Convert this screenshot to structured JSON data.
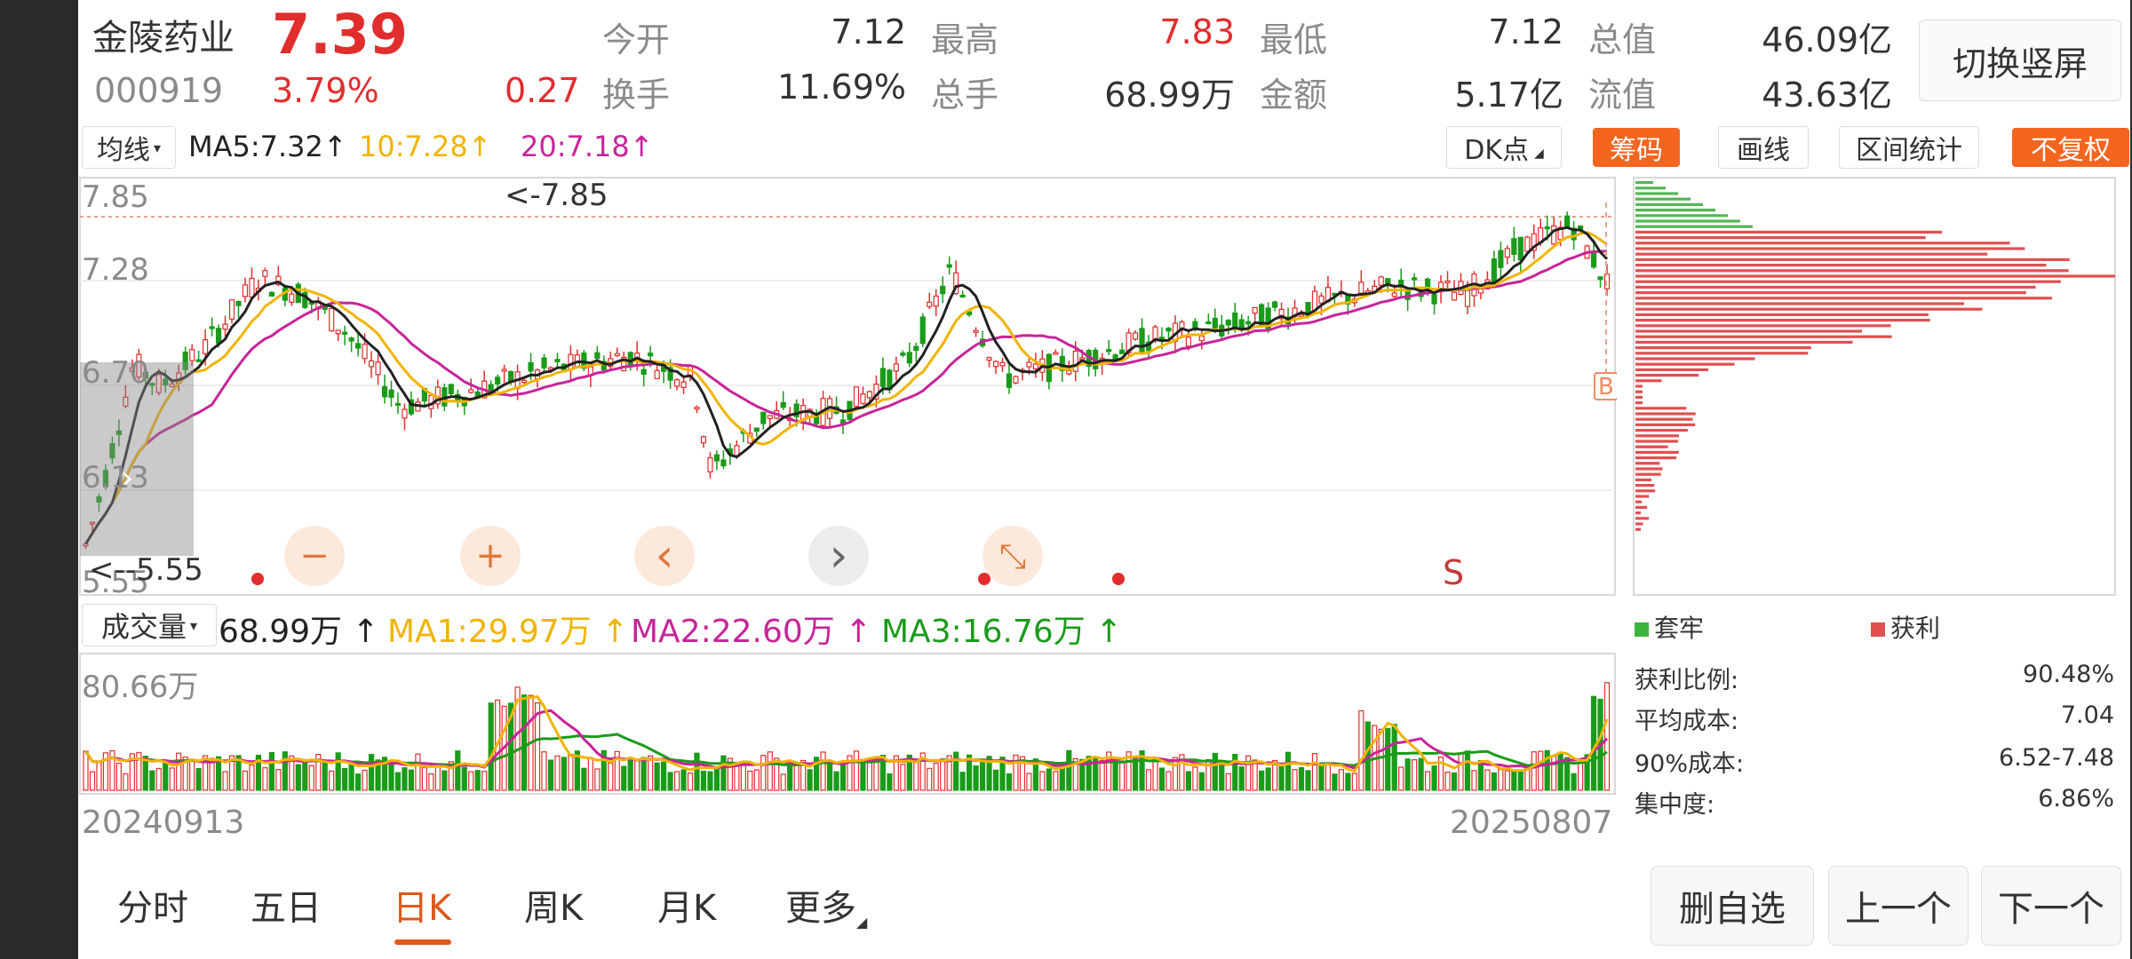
{
  "header": {
    "stock_name": "金陵药业",
    "price": "7.39",
    "code": "000919",
    "change_pct": "3.79%",
    "change": "0.27",
    "stats": [
      {
        "label": "今开",
        "value": "7.12",
        "color": "#333333"
      },
      {
        "label": "最高",
        "value": "7.83",
        "color": "#e22d2d"
      },
      {
        "label": "最低",
        "value": "7.12",
        "color": "#333333"
      },
      {
        "label": "总值",
        "value": "46.09亿",
        "color": "#333333"
      },
      {
        "label": "换手",
        "value": "11.69%",
        "color": "#333333"
      },
      {
        "label": "总手",
        "value": "68.99万",
        "color": "#333333"
      },
      {
        "label": "金额",
        "value": "5.17亿",
        "color": "#333333"
      },
      {
        "label": "流值",
        "value": "43.63亿",
        "color": "#333333"
      }
    ],
    "switch_button": "切换竖屏"
  },
  "ma_bar": {
    "selector": "均线",
    "ma5": "MA5:7.32",
    "ma10": "10:7.28",
    "ma20": "20:7.18",
    "arrow": "↑",
    "dk_button": "DK点",
    "chips_button": "筹码",
    "draw_button": "画线",
    "range_stats_button": "区间统计",
    "adjust_button": "不复权"
  },
  "kline": {
    "y_labels": [
      "7.85",
      "7.28",
      "6.70",
      "6.13",
      "5.55"
    ],
    "high_marker": "<-7.85",
    "low_marker": "<--5.55",
    "signal_s": "S",
    "signal_b": "B"
  },
  "controls": {
    "zoom_out": "−",
    "zoom_in": "+",
    "prev": "‹",
    "next": "›",
    "collapse": "⤡"
  },
  "volume_bar": {
    "selector": "成交量",
    "value": "68.99万",
    "ma1": "MA1:29.97万",
    "ma2": "MA2:22.60万",
    "ma3": "MA3:16.76万",
    "arrow": "↑",
    "max_label": "80.66万",
    "start_date": "20240913",
    "end_date": "20250807"
  },
  "chips": {
    "legend_trapped": "套牢",
    "legend_profit": "获利",
    "rows": [
      {
        "label": "获利比例:",
        "value": "90.48%"
      },
      {
        "label": "平均成本:",
        "value": "7.04"
      },
      {
        "label": "90%成本:",
        "value": "6.52-7.48"
      },
      {
        "label": "集中度:",
        "value": "6.86%"
      }
    ]
  },
  "tabs": [
    "分时",
    "五日",
    "日K",
    "周K",
    "月K",
    "更多"
  ],
  "active_tab": "日K",
  "bottom_buttons": [
    "删自选",
    "上一个",
    "下一个"
  ],
  "colors": {
    "up": "#e22d2d",
    "down": "#1a9b1a",
    "ma5": "#222222",
    "ma10": "#f0b400",
    "ma20": "#c8249a",
    "accent": "#f4651f"
  }
}
